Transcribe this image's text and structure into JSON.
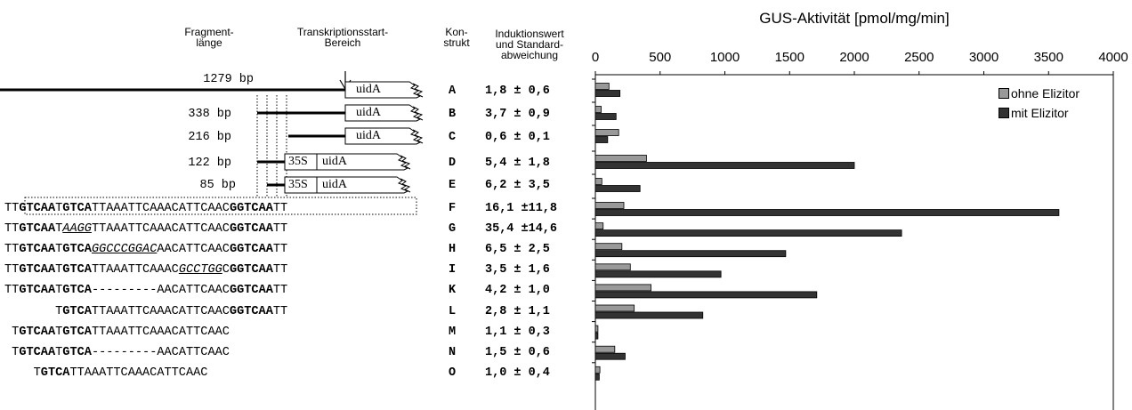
{
  "headers": {
    "fragment": [
      "Fragment-",
      "länge"
    ],
    "tss": [
      "Transkriptionsstart-",
      "Bereich"
    ],
    "konstrukt": [
      "Kon-",
      "strukt"
    ],
    "induktion": [
      "Induktionswert",
      "und Standard-",
      "abweichung"
    ]
  },
  "constructs": [
    {
      "fragment": "1279 bp",
      "box": [
        "uidA"
      ],
      "konstrukt": "A",
      "induktion": "1,8 ± 0,6"
    },
    {
      "fragment": "338 bp",
      "box": [
        "uidA"
      ],
      "konstrukt": "B",
      "induktion": "3,7 ± 0,9"
    },
    {
      "fragment": "216 bp",
      "box": [
        "uidA"
      ],
      "konstrukt": "C",
      "induktion": "0,6 ± 0,1"
    },
    {
      "fragment": "122 bp",
      "box": [
        "35S",
        "uidA"
      ],
      "konstrukt": "D",
      "induktion": "5,4 ± 1,8"
    },
    {
      "fragment": "85 bp",
      "box": [
        "35S",
        "uidA"
      ],
      "konstrukt": "E",
      "induktion": "6,2 ± 3,5"
    }
  ],
  "sequences": [
    {
      "konstrukt": "F",
      "induktion": "16,1 ±11,8",
      "parts": [
        [
          "n",
          "TT"
        ],
        [
          "b",
          "GTCAA"
        ],
        [
          "n",
          "T"
        ],
        [
          "b",
          "GTCA"
        ],
        [
          "n",
          "TTAAATTCAAACATTCAAC"
        ],
        [
          "b",
          "GGTCAA"
        ],
        [
          "n",
          "TT"
        ]
      ]
    },
    {
      "konstrukt": "G",
      "induktion": "35,4 ±14,6",
      "parts": [
        [
          "n",
          "TT"
        ],
        [
          "b",
          "GTCAA"
        ],
        [
          "n",
          "T"
        ],
        [
          "u",
          "AAGG"
        ],
        [
          "n",
          "TTAAATTCAAACATTCAAC"
        ],
        [
          "b",
          "GGTCAA"
        ],
        [
          "n",
          "TT"
        ]
      ]
    },
    {
      "konstrukt": "H",
      "induktion": "6,5 ± 2,5",
      "parts": [
        [
          "n",
          "TT"
        ],
        [
          "b",
          "GTCAA"
        ],
        [
          "n",
          "T"
        ],
        [
          "b",
          "GTCA"
        ],
        [
          "u",
          "GGCCCGGAC"
        ],
        [
          "n",
          "AACATTCAAC"
        ],
        [
          "b",
          "GGTCAA"
        ],
        [
          "n",
          "TT"
        ]
      ]
    },
    {
      "konstrukt": "I",
      "induktion": "3,5 ± 1,6",
      "parts": [
        [
          "n",
          "TT"
        ],
        [
          "b",
          "GTCAA"
        ],
        [
          "n",
          "T"
        ],
        [
          "b",
          "GTCA"
        ],
        [
          "n",
          "TTAAATTCAAAC"
        ],
        [
          "u",
          "GCCTGG"
        ],
        [
          "n",
          "C"
        ],
        [
          "b",
          "GGTCAA"
        ],
        [
          "n",
          "TT"
        ]
      ]
    },
    {
      "konstrukt": "K",
      "induktion": "4,2 ± 1,0",
      "parts": [
        [
          "n",
          "TT"
        ],
        [
          "b",
          "GTCAA"
        ],
        [
          "n",
          "T"
        ],
        [
          "b",
          "GTCA"
        ],
        [
          "n",
          "---------AACATTCAAC"
        ],
        [
          "b",
          "GGTCAA"
        ],
        [
          "n",
          "TT"
        ]
      ]
    },
    {
      "konstrukt": "L",
      "induktion": "2,8 ± 1,1",
      "parts": [
        [
          "n",
          "       T"
        ],
        [
          "b",
          "GTCA"
        ],
        [
          "n",
          "TTAAATTCAAACATTCAAC"
        ],
        [
          "b",
          "GGTCAA"
        ],
        [
          "n",
          "TT"
        ]
      ]
    },
    {
      "konstrukt": "M",
      "induktion": "1,1 ± 0,3",
      "parts": [
        [
          "n",
          " T"
        ],
        [
          "b",
          "GTCAA"
        ],
        [
          "n",
          "T"
        ],
        [
          "b",
          "GTCA"
        ],
        [
          "n",
          "TTAAATTCAAACATTCAAC"
        ]
      ]
    },
    {
      "konstrukt": "N",
      "induktion": "1,5 ± 0,6",
      "parts": [
        [
          "n",
          " T"
        ],
        [
          "b",
          "GTCAA"
        ],
        [
          "n",
          "T"
        ],
        [
          "b",
          "GTCA"
        ],
        [
          "n",
          "---------AACATTCAAC"
        ]
      ]
    },
    {
      "konstrukt": "O",
      "induktion": "1,0 ± 0,4",
      "parts": [
        [
          "n",
          "    T"
        ],
        [
          "b",
          "GTCA"
        ],
        [
          "n",
          "TTAAATTCAAACATTCAAC"
        ]
      ]
    }
  ],
  "chart_data": {
    "type": "bar",
    "orientation": "horizontal",
    "title": "GUS-Aktivität [pmol/mg/min]",
    "xlim": [
      0,
      4000
    ],
    "xticks": [
      0,
      500,
      1000,
      1500,
      2000,
      2500,
      3000,
      3500,
      4000
    ],
    "categories": [
      "A",
      "B",
      "C",
      "D",
      "E",
      "F",
      "G",
      "H",
      "I",
      "K",
      "L",
      "M",
      "N",
      "O"
    ],
    "series": [
      {
        "name": "ohne Elizitor",
        "color": "#999999",
        "values": [
          105,
          45,
          180,
          395,
          50,
          220,
          60,
          205,
          270,
          430,
          300,
          20,
          150,
          35
        ]
      },
      {
        "name": "mit Elizitor",
        "color": "#333333",
        "values": [
          190,
          160,
          95,
          2000,
          345,
          3580,
          2365,
          1470,
          970,
          1710,
          830,
          20,
          230,
          30
        ]
      }
    ],
    "legend_position": "top-right",
    "grid": false
  },
  "colors": {
    "bar_ohne": "#999999",
    "bar_mit": "#333333",
    "axis": "#000000"
  }
}
